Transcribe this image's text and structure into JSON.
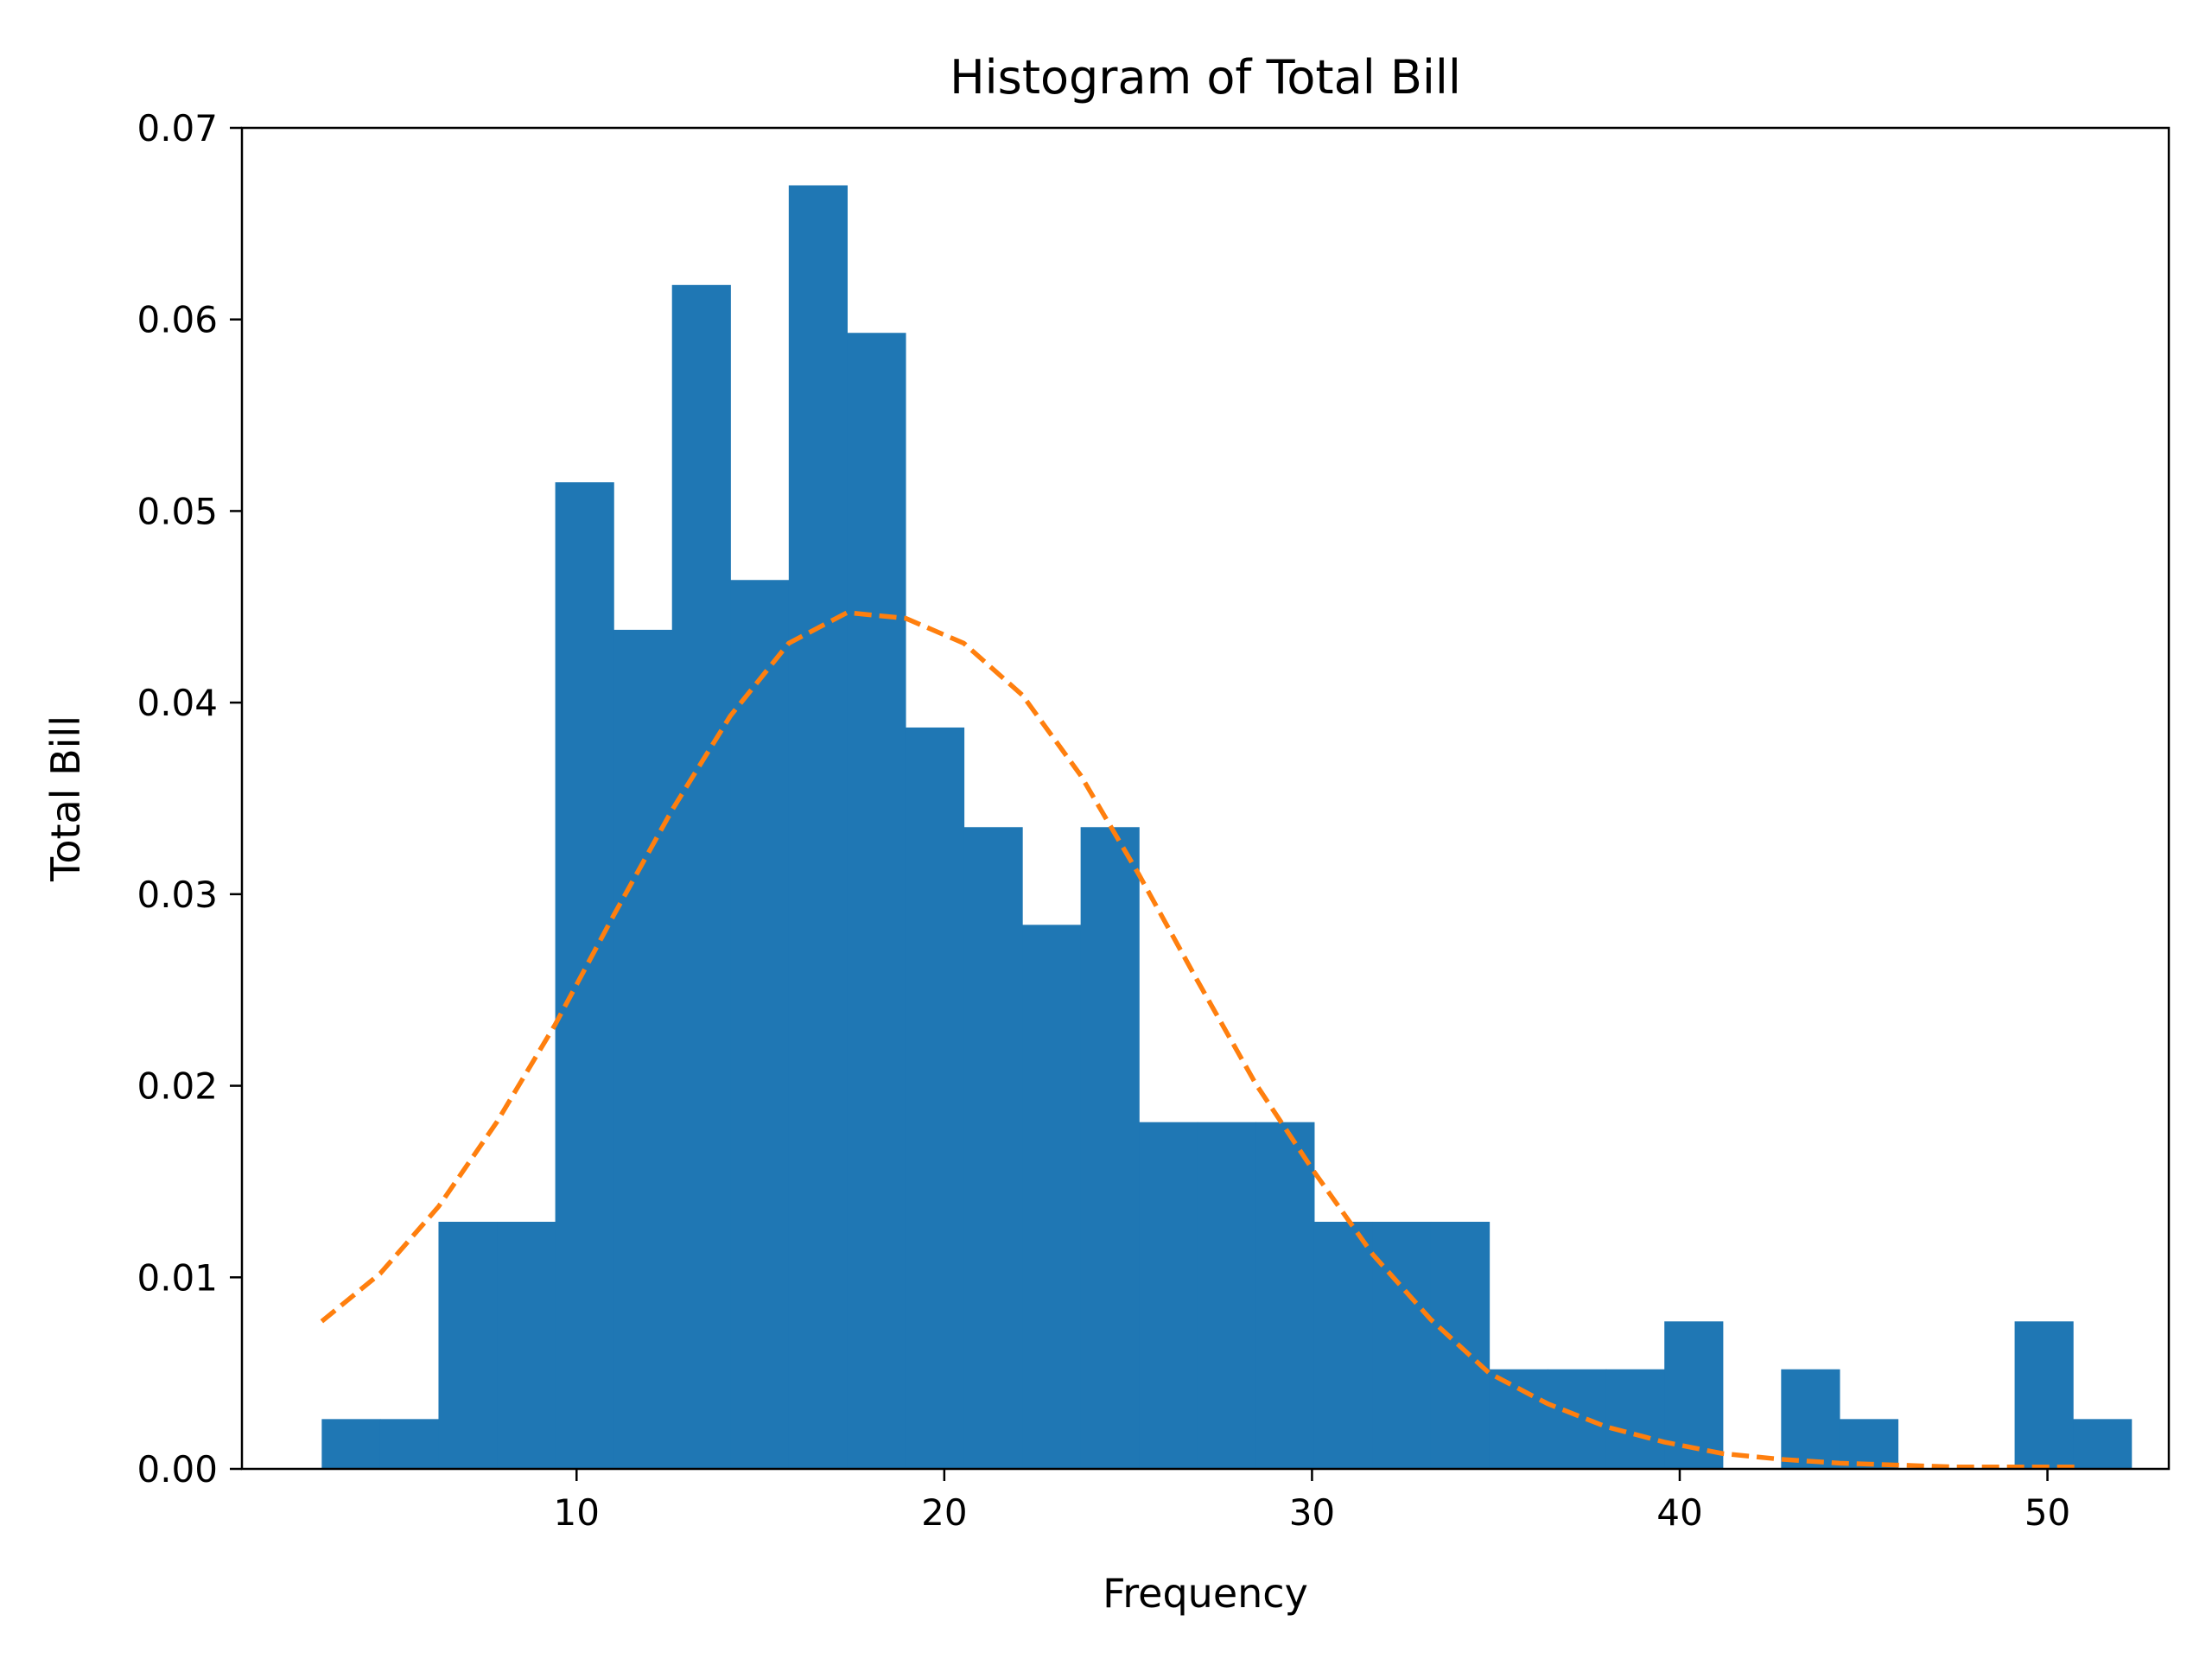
{
  "chart_data": {
    "type": "bar",
    "title": "Histogram of Total Bill",
    "xlabel": "Frequency",
    "ylabel": "Total Bill",
    "xlim": [
      0.9,
      53.3
    ],
    "ylim": [
      0,
      0.07
    ],
    "x_ticks": [
      "10",
      "20",
      "30",
      "40",
      "50"
    ],
    "y_ticks": [
      "0.00",
      "0.01",
      "0.02",
      "0.03",
      "0.04",
      "0.05",
      "0.06",
      "0.07"
    ],
    "grid": false,
    "bar_color": "#1f77b4",
    "bins": {
      "start": 3.07,
      "width": 1.5875,
      "values": [
        0.0026,
        0.0026,
        0.0129,
        0.0129,
        0.0515,
        0.0438,
        0.0618,
        0.0464,
        0.067,
        0.0593,
        0.0387,
        0.0335,
        0.0284,
        0.0335,
        0.0181,
        0.0181,
        0.0181,
        0.0129,
        0.0129,
        0.0129,
        0.0052,
        0.0052,
        0.0052,
        0.0077,
        0.0,
        0.0052,
        0.0026,
        0.0,
        0.0,
        0.0077,
        0.0026
      ]
    },
    "series": [
      {
        "type": "line",
        "style": "dashed",
        "color": "#ff7f0e",
        "x": [
          3.07,
          4.66,
          6.25,
          7.83,
          9.42,
          11.01,
          12.6,
          14.18,
          15.77,
          17.36,
          18.95,
          20.53,
          22.12,
          23.71,
          25.3,
          26.88,
          28.47,
          30.06,
          31.65,
          33.23,
          34.82,
          36.41,
          38.0,
          39.58,
          41.17,
          42.76,
          44.35,
          45.93,
          47.52,
          49.11,
          50.81
        ],
        "y": [
          0.0077,
          0.0102,
          0.0137,
          0.0181,
          0.0232,
          0.0289,
          0.0344,
          0.0393,
          0.0431,
          0.0447,
          0.0444,
          0.0431,
          0.0404,
          0.0362,
          0.031,
          0.0255,
          0.0201,
          0.0155,
          0.0112,
          0.0078,
          0.005,
          0.0034,
          0.0022,
          0.0014,
          0.0008,
          0.0005,
          0.0003,
          0.0002,
          0.0001,
          0.0001,
          0.0001
        ]
      }
    ]
  }
}
